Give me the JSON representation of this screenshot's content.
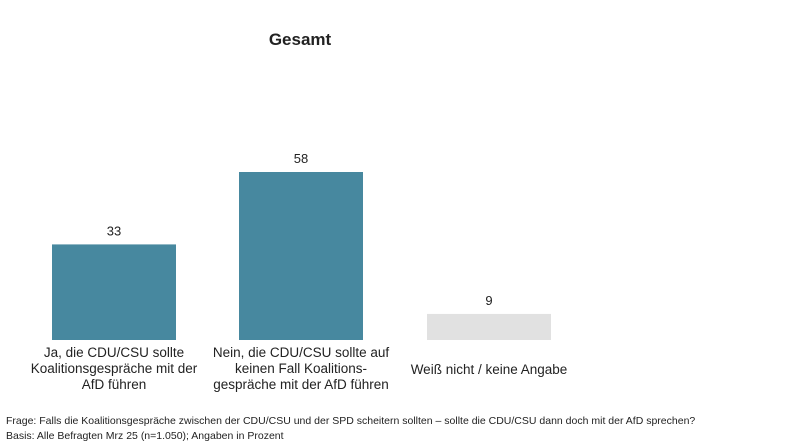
{
  "chart_data": {
    "type": "bar",
    "title": "Gesamt",
    "categories": [
      "Ja, die CDU/CSU sollte Koalitionsgespräche mit der AfD führen",
      "Nein, die CDU/CSU sollte auf keinen Fall Koalitions-gespräche mit der AfD führen",
      "Weiß nicht / keine Angabe"
    ],
    "category_lines": [
      [
        "Ja, die CDU/CSU sollte",
        "Koalitionsgespräche mit der",
        "AfD führen"
      ],
      [
        "Nein, die CDU/CSU sollte auf",
        "keinen Fall Koalitions-",
        "gespräche mit der AfD führen"
      ],
      [
        "Weiß nicht / keine Angabe"
      ]
    ],
    "values": [
      33,
      58,
      9
    ],
    "colors": [
      "#47889f",
      "#47889f",
      "#e1e1e1"
    ],
    "ylim": [
      0,
      58
    ],
    "xlabel": "",
    "ylabel": "",
    "grid": false,
    "legend": "none"
  },
  "footnotes": {
    "question": "Frage: Falls die Koalitionsgespräche zwischen der CDU/CSU und der SPD scheitern sollten – sollte die CDU/CSU dann doch mit der AfD sprechen?",
    "basis": "Basis: Alle Befragten Mrz 25 (n=1.050); Angaben in Prozent"
  }
}
